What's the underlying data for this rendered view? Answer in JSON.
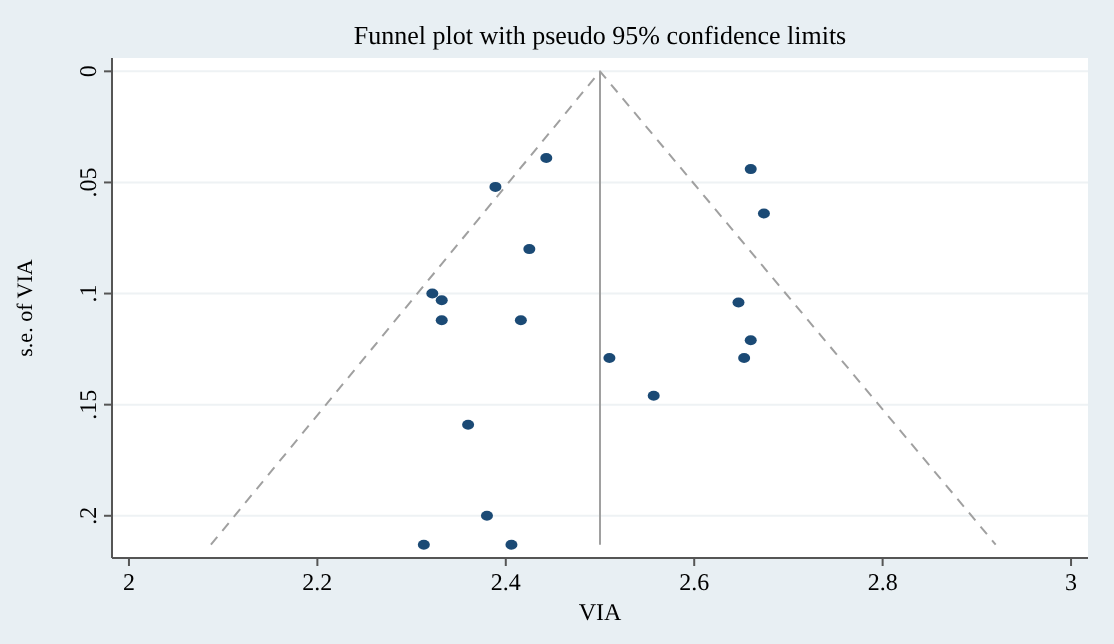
{
  "chart_data": {
    "type": "scatter",
    "title": "Funnel plot with pseudo 95% confidence limits",
    "xlabel": "VIA",
    "ylabel": "s.e. of VIA",
    "xlim": [
      1.982,
      3.018
    ],
    "ylim": [
      0.219,
      -0.006
    ],
    "xticks": [
      2,
      2.2,
      2.4,
      2.6,
      2.8,
      3
    ],
    "yticks": [
      {
        "value": 0,
        "label": "0"
      },
      {
        "value": 0.05,
        "label": ".05"
      },
      {
        "value": 0.1,
        "label": ".1"
      },
      {
        "value": 0.15,
        "label": ".15"
      },
      {
        "value": 0.2,
        "label": ".2"
      }
    ],
    "grid": "y",
    "marker": "circle",
    "series": [
      {
        "color": "#1b4a75",
        "x": [
          2.443,
          2.389,
          2.66,
          2.674,
          2.425,
          2.322,
          2.332,
          2.332,
          2.416,
          2.647,
          2.66,
          2.653,
          2.51,
          2.557,
          2.36,
          2.38,
          2.313,
          2.406
        ],
        "values": [
          0.039,
          0.052,
          0.044,
          0.064,
          0.08,
          0.1,
          0.103,
          0.112,
          0.112,
          0.104,
          0.121,
          0.129,
          0.129,
          0.146,
          0.159,
          0.2,
          0.213,
          0.213
        ]
      },
      {
        "type": "line",
        "color": "#a0a0a0",
        "line_style": "dashed",
        "marker": "none",
        "x": [
          2.087,
          2.5,
          2.92
        ],
        "values": [
          0.213,
          0,
          0.213
        ]
      },
      {
        "type": "line",
        "color": "#a0a0a0",
        "line_style": "solid",
        "marker": "none",
        "x": [
          2.5,
          2.5
        ],
        "values": [
          0,
          0.213
        ]
      }
    ]
  }
}
